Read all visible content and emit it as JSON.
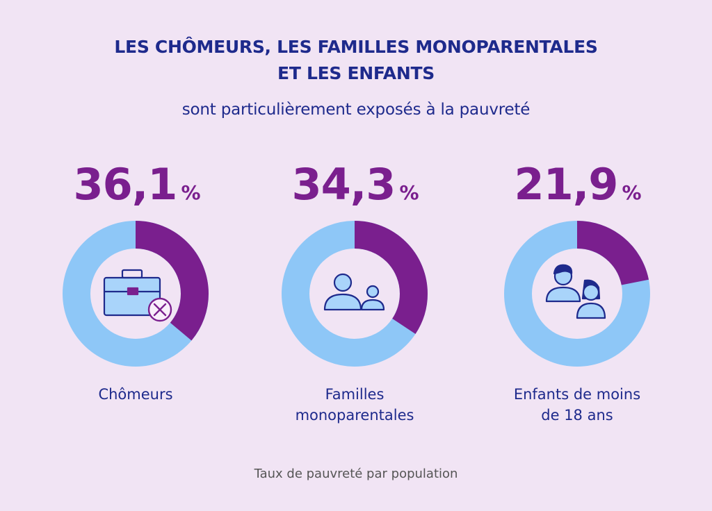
{
  "header": {
    "title_line1": "LES CHÔMEURS, LES FAMILLES MONOPARENTALES",
    "title_line2": "ET LES ENFANTS",
    "subtitle": "sont particulièrement exposés à la pauvreté"
  },
  "footnote": "Taux de pauvreté par population",
  "colors": {
    "background": "#f1e4f4",
    "highlight": "#7a1f8e",
    "remainder": "#8ec7f7",
    "text": "#1e2a8c"
  },
  "chart_data": {
    "type": "pie",
    "variant": "donut",
    "title": "",
    "unit": "%",
    "categories": [
      "Chômeurs",
      "Familles monoparentales",
      "Enfants de moins de 18 ans"
    ],
    "values": [
      36.1,
      34.3,
      21.9
    ],
    "items": [
      {
        "value_text": "36,1",
        "unit": "%",
        "label_lines": [
          "Chômeurs"
        ],
        "icon": "briefcase-x-icon"
      },
      {
        "value_text": "34,3",
        "unit": "%",
        "label_lines": [
          "Familles",
          "monoparentales"
        ],
        "icon": "parent-child-icon"
      },
      {
        "value_text": "21,9",
        "unit": "%",
        "label_lines": [
          "Enfants de moins",
          "de 18 ans"
        ],
        "icon": "children-icon"
      }
    ]
  }
}
